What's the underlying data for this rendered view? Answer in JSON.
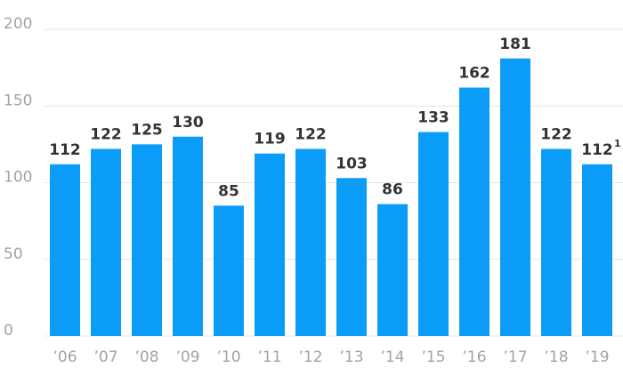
{
  "chart_data": {
    "type": "bar",
    "categories": [
      "’06",
      "’07",
      "’08",
      "’09",
      "’10",
      "’11",
      "’12",
      "’13",
      "’14",
      "’15",
      "’16",
      "’17",
      "’18",
      "’19"
    ],
    "values": [
      112,
      122,
      125,
      130,
      85,
      119,
      122,
      103,
      86,
      133,
      162,
      181,
      122,
      112
    ],
    "color": "#0a9cf7",
    "ylim": [
      0,
      200
    ],
    "yticks": [
      0,
      50,
      100,
      150,
      200
    ],
    "grid": true,
    "annotation": "1"
  }
}
